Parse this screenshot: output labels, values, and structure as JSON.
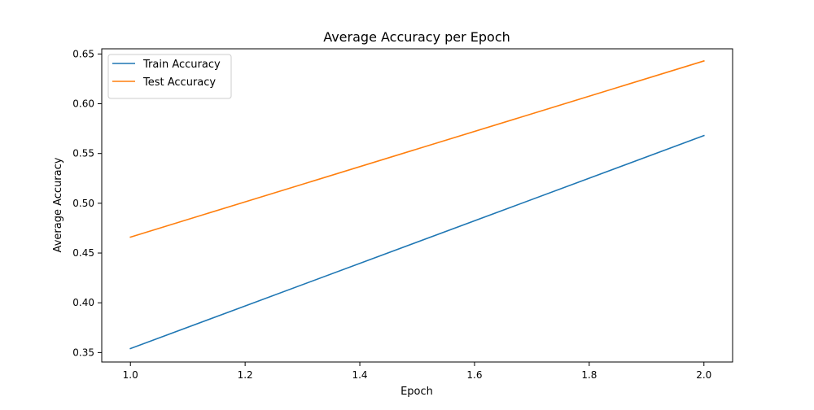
{
  "chart_data": {
    "type": "line",
    "title": "Average Accuracy per Epoch",
    "xlabel": "Epoch",
    "ylabel": "Average Accuracy",
    "xlim": [
      0.95,
      2.05
    ],
    "ylim": [
      0.3405,
      0.6552
    ],
    "x_ticks": [
      1.0,
      1.2,
      1.4,
      1.6,
      1.8,
      2.0
    ],
    "x_tick_labels": [
      "1.0",
      "1.2",
      "1.4",
      "1.6",
      "1.8",
      "2.0"
    ],
    "y_ticks": [
      0.35,
      0.4,
      0.45,
      0.5,
      0.55,
      0.6,
      0.65
    ],
    "y_tick_labels": [
      "0.35",
      "0.40",
      "0.45",
      "0.50",
      "0.55",
      "0.60",
      "0.65"
    ],
    "grid": false,
    "legend_position": "top-left",
    "x": [
      1,
      2
    ],
    "series": [
      {
        "name": "Train Accuracy",
        "values": [
          0.354,
          0.568
        ],
        "color": "#1f77b4"
      },
      {
        "name": "Test Accuracy",
        "values": [
          0.466,
          0.643
        ],
        "color": "#ff7f0e"
      }
    ]
  }
}
